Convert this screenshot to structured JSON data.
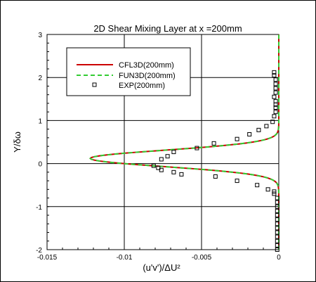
{
  "chart_data": {
    "type": "line",
    "title": "2D Shear Mixing Layer at x =200mm",
    "xlabel": "(u'v')/ΔU²",
    "ylabel": "Y/δω",
    "xlim": [
      -0.015,
      0
    ],
    "ylim": [
      -2,
      3
    ],
    "grid": true,
    "legend_position": "top-left",
    "x_ticks": [
      -0.015,
      -0.01,
      -0.005,
      0
    ],
    "x_tick_labels": [
      "-0.015",
      "-0.01",
      "-0.005",
      "0"
    ],
    "y_ticks": [
      -2,
      -1,
      0,
      1,
      2,
      3
    ],
    "y_tick_labels": [
      "-2",
      "-1",
      "0",
      "1",
      "2",
      "3"
    ],
    "series": [
      {
        "name": "CFL3D(200mm)",
        "color": "#cc0000",
        "style": "solid",
        "peak_x": -0.0122,
        "peak_y": 0.12,
        "width_y": 0.27
      },
      {
        "name": "FUN3D(200mm)",
        "color": "#33cc33",
        "style": "dashed",
        "peak_x": -0.0122,
        "peak_y": 0.12,
        "width_y": 0.27
      },
      {
        "name": "EXP(200mm)",
        "color": "#000000",
        "style": "marker-square",
        "points": [
          [
            -0.0001,
            -2.0
          ],
          [
            -0.0001,
            -1.9
          ],
          [
            -0.0001,
            -1.8
          ],
          [
            -0.0001,
            -1.7
          ],
          [
            -0.0001,
            -1.6
          ],
          [
            -0.0001,
            -1.5
          ],
          [
            -0.0001,
            -1.4
          ],
          [
            -0.0001,
            -1.3
          ],
          [
            -0.0001,
            -1.2
          ],
          [
            -0.0001,
            -1.1
          ],
          [
            -0.0001,
            -1.0
          ],
          [
            -0.0001,
            -0.9
          ],
          [
            -0.0001,
            -0.8
          ],
          [
            -0.0003,
            -0.7
          ],
          [
            -0.0003,
            -0.65
          ],
          [
            -0.0007,
            -0.6
          ],
          [
            -0.0014,
            -0.5
          ],
          [
            -0.0027,
            -0.4
          ],
          [
            -0.0041,
            -0.3
          ],
          [
            -0.0063,
            -0.25
          ],
          [
            -0.0068,
            -0.2
          ],
          [
            -0.0076,
            -0.15
          ],
          [
            -0.0078,
            -0.1
          ],
          [
            -0.0081,
            -0.05
          ],
          [
            -0.0076,
            0.1
          ],
          [
            -0.0072,
            0.17
          ],
          [
            -0.0068,
            0.27
          ],
          [
            -0.0053,
            0.36
          ],
          [
            -0.0042,
            0.47
          ],
          [
            -0.0027,
            0.57
          ],
          [
            -0.0019,
            0.68
          ],
          [
            -0.0013,
            0.78
          ],
          [
            -0.0008,
            0.87
          ],
          [
            -0.0004,
            0.97
          ],
          [
            -0.0003,
            1.1
          ],
          [
            -0.0002,
            1.2
          ],
          [
            -0.0002,
            1.3
          ],
          [
            -0.0002,
            1.37
          ],
          [
            -0.0002,
            1.45
          ],
          [
            -0.0003,
            1.55
          ],
          [
            -0.0002,
            1.65
          ],
          [
            -0.0002,
            1.75
          ],
          [
            -0.0002,
            1.85
          ],
          [
            -0.0002,
            1.95
          ],
          [
            -0.0003,
            2.05
          ],
          [
            -0.0003,
            2.12
          ]
        ]
      }
    ]
  }
}
